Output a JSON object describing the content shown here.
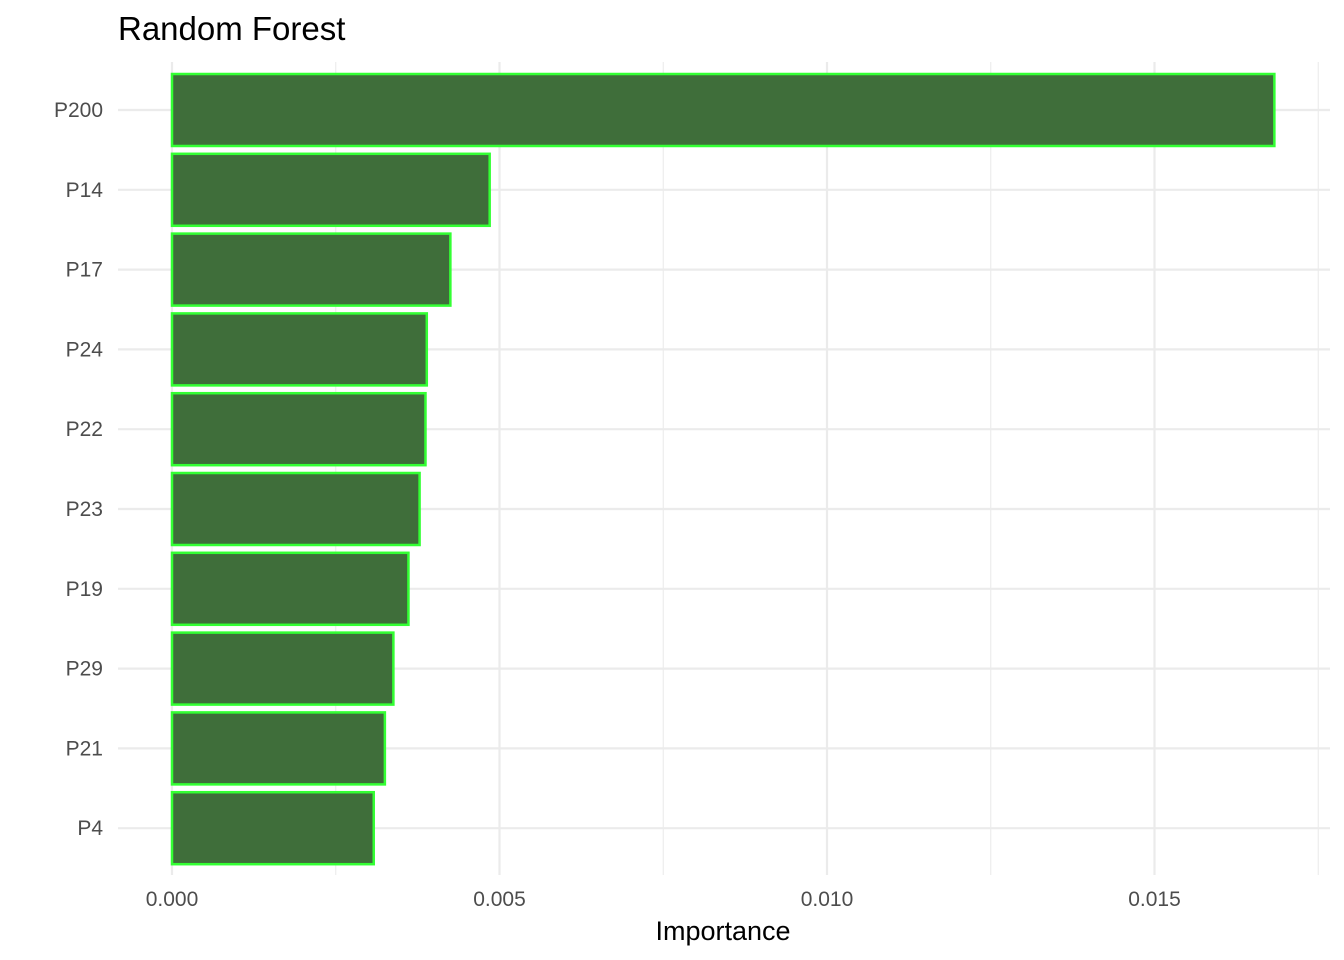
{
  "chart_data": {
    "type": "bar",
    "orientation": "horizontal",
    "title": "Random Forest",
    "xlabel": "Importance",
    "ylabel": "",
    "categories": [
      "P200",
      "P14",
      "P17",
      "P24",
      "P22",
      "P23",
      "P19",
      "P29",
      "P21",
      "P4"
    ],
    "values": [
      0.01683,
      0.00485,
      0.00425,
      0.00389,
      0.00387,
      0.00378,
      0.00361,
      0.00338,
      0.00325,
      0.00308
    ],
    "xlim": [
      0,
      0.0175
    ],
    "xticks": [
      0.0,
      0.005,
      0.01,
      0.015
    ],
    "xtick_labels": [
      "0.000",
      "0.005",
      "0.010",
      "0.015"
    ],
    "grid": true,
    "legend": "none",
    "colors": {
      "bar_fill": "#3f6e3a",
      "bar_outline": "#33ff33",
      "grid": "#ebebeb"
    }
  }
}
